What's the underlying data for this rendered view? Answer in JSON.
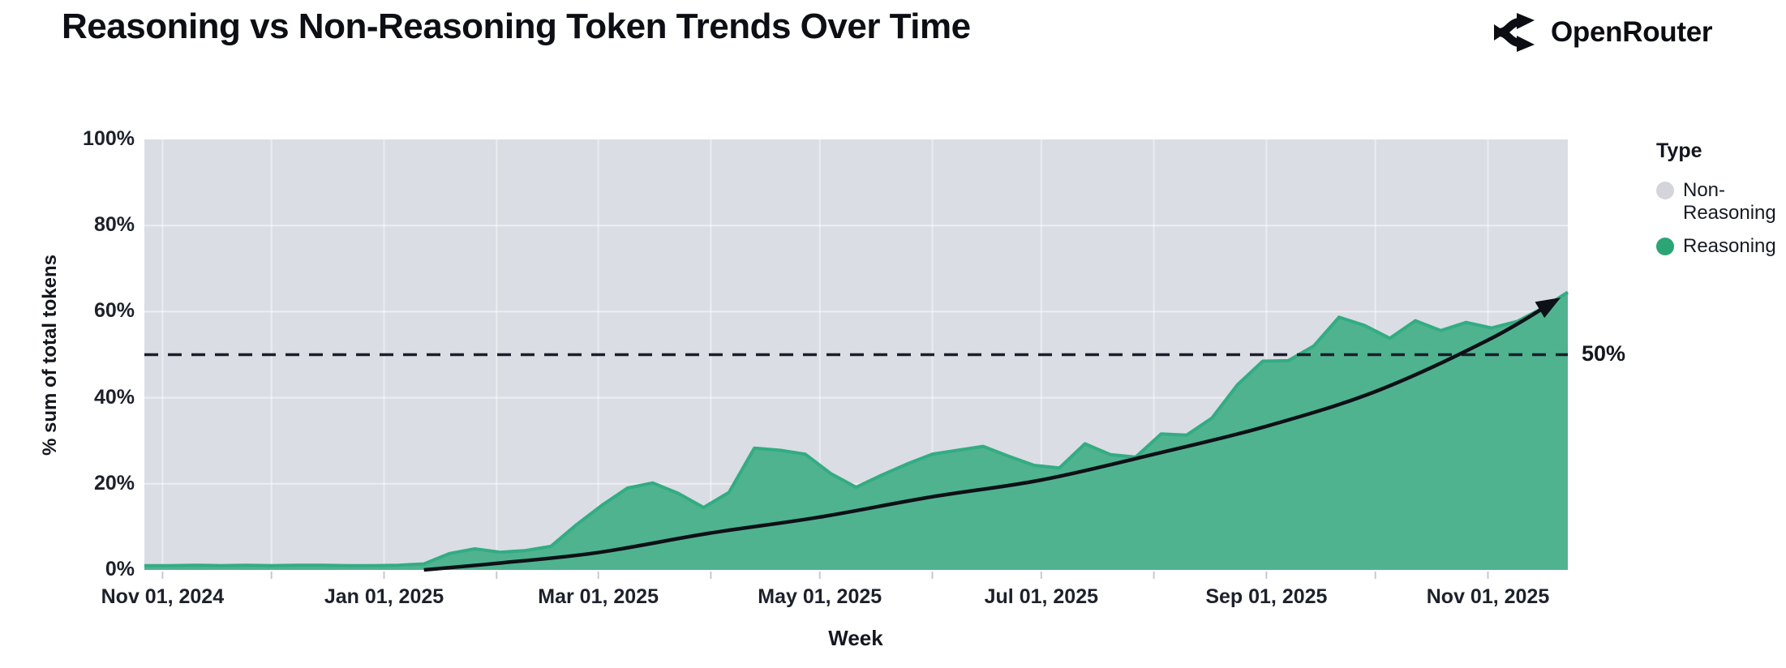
{
  "header": {
    "title": "Reasoning vs Non-Reasoning Token Trends Over Time",
    "brand": "OpenRouter"
  },
  "chart": {
    "x_axis_title": "Week",
    "y_axis_title": "% sum of total tokens",
    "y_ticks": [
      0,
      20,
      40,
      60,
      80,
      100
    ],
    "y_tick_suffix": "%",
    "x_tick_labels": [
      "Nov 01, 2024",
      "Jan 01, 2025",
      "Mar 01, 2025",
      "May 01, 2025",
      "Jul 01, 2025",
      "Sep 01, 2025",
      "Nov 01, 2025"
    ],
    "x_tick_dates": [
      "2024-11-01",
      "2025-01-01",
      "2025-03-01",
      "2025-05-01",
      "2025-07-01",
      "2025-09-01",
      "2025-11-01"
    ],
    "reference_line_label": "50%",
    "legend": {
      "title": "Type",
      "items": [
        {
          "label": "Non-Reasoning",
          "color": "#d3d5db"
        },
        {
          "label": "Reasoning",
          "color": "#2ba476"
        }
      ]
    }
  },
  "colors": {
    "plot_background": "#dadde4",
    "area_fill": "#4fb390",
    "area_stroke": "#33ac82",
    "nonreasoning_fill": "#dadde4",
    "gridline": "rgba(255,255,255,0.5)",
    "tick_mark": "#c5c9d1",
    "reference_line": "#1b1f2a",
    "trend_arrow": "#0d1016",
    "text": "#14171f"
  },
  "chart_data": {
    "type": "area",
    "stacking": "percent",
    "title": "Reasoning vs Non-Reasoning Token Trends Over Time",
    "xlabel": "Week",
    "ylabel": "% sum of total tokens",
    "ylim": [
      0,
      100
    ],
    "grid": true,
    "legend_position": "right",
    "x": [
      "2024-10-27",
      "2024-11-03",
      "2024-11-10",
      "2024-11-17",
      "2024-11-24",
      "2024-12-01",
      "2024-12-08",
      "2024-12-15",
      "2024-12-22",
      "2024-12-29",
      "2025-01-05",
      "2025-01-12",
      "2025-01-19",
      "2025-01-26",
      "2025-02-02",
      "2025-02-09",
      "2025-02-16",
      "2025-02-23",
      "2025-03-02",
      "2025-03-09",
      "2025-03-16",
      "2025-03-23",
      "2025-03-30",
      "2025-04-06",
      "2025-04-13",
      "2025-04-20",
      "2025-04-27",
      "2025-05-04",
      "2025-05-11",
      "2025-05-18",
      "2025-05-25",
      "2025-06-01",
      "2025-06-08",
      "2025-06-15",
      "2025-06-22",
      "2025-06-29",
      "2025-07-06",
      "2025-07-13",
      "2025-07-20",
      "2025-07-27",
      "2025-08-03",
      "2025-08-10",
      "2025-08-17",
      "2025-08-24",
      "2025-08-31",
      "2025-09-07",
      "2025-09-14",
      "2025-09-21",
      "2025-09-28",
      "2025-10-05",
      "2025-10-12",
      "2025-10-19",
      "2025-10-26",
      "2025-11-02",
      "2025-11-09",
      "2025-11-16",
      "2025-11-23"
    ],
    "series": [
      {
        "name": "Reasoning",
        "color": "#4fb390",
        "values": [
          1.0,
          1.0,
          1.1,
          1.0,
          1.1,
          1.0,
          1.1,
          1.1,
          1.0,
          1.0,
          1.1,
          1.4,
          3.8,
          4.9,
          4.1,
          4.5,
          5.5,
          10.5,
          15.0,
          19.0,
          20.2,
          17.8,
          14.5,
          18.0,
          28.3,
          27.8,
          26.9,
          22.4,
          19.2,
          22.0,
          24.6,
          26.9,
          27.8,
          28.7,
          26.4,
          24.3,
          23.7,
          29.3,
          26.8,
          26.2,
          31.6,
          31.3,
          35.3,
          43.0,
          48.5,
          48.6,
          52.0,
          58.7,
          56.8,
          53.8,
          57.9,
          55.6,
          57.5,
          56.2,
          57.7,
          60.8,
          64.5
        ]
      },
      {
        "name": "Non-Reasoning",
        "color": "#dadde4",
        "note": "complement of Reasoning in 100% stack",
        "values": [
          99.0,
          99.0,
          98.9,
          99.0,
          98.9,
          99.0,
          98.9,
          98.9,
          99.0,
          99.0,
          98.9,
          98.6,
          96.2,
          95.1,
          95.9,
          95.5,
          94.5,
          89.5,
          85.0,
          81.0,
          79.8,
          82.2,
          85.5,
          82.0,
          71.7,
          72.2,
          73.1,
          77.6,
          80.8,
          78.0,
          75.4,
          73.1,
          72.2,
          71.3,
          73.6,
          75.7,
          76.3,
          70.7,
          73.2,
          73.8,
          68.4,
          68.7,
          64.7,
          57.0,
          51.5,
          51.4,
          48.0,
          41.3,
          43.2,
          46.2,
          42.1,
          44.4,
          42.5,
          43.8,
          42.3,
          39.2,
          35.5
        ]
      }
    ],
    "annotations": {
      "reference_line": {
        "y": 50,
        "label": "50%",
        "style": "dashed"
      },
      "trend_arrow": {
        "description": "black curved arrow showing accelerating reasoning share",
        "points_week_index_vs_pct": [
          [
            11,
            0
          ],
          [
            14,
            1.6
          ],
          [
            17.8,
            4.0
          ],
          [
            22.2,
            8.5
          ],
          [
            26.5,
            12.2
          ],
          [
            30.9,
            16.9
          ],
          [
            35.3,
            20.9
          ],
          [
            39.6,
            26.7
          ],
          [
            44.1,
            33.3
          ],
          [
            48.5,
            41.6
          ],
          [
            52.9,
            53.5
          ],
          [
            55.5,
            62.5
          ]
        ]
      }
    }
  }
}
